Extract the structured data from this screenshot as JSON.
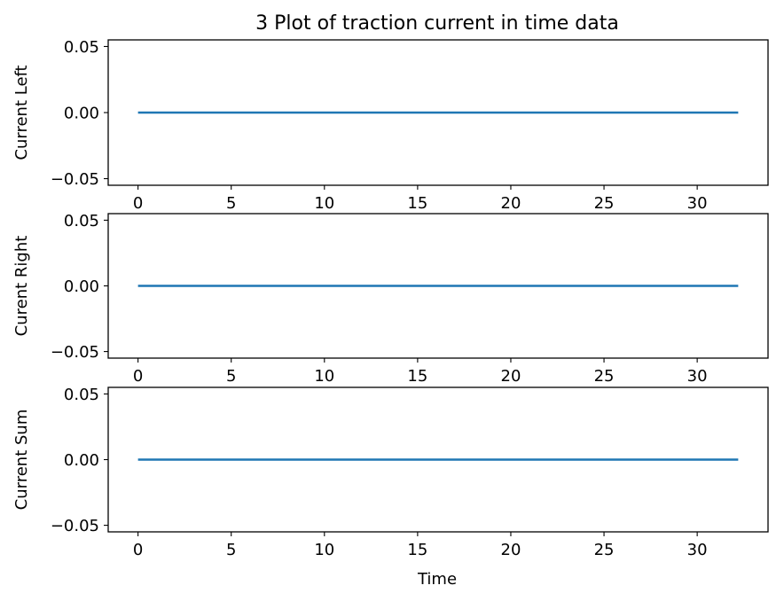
{
  "title": "3 Plot of traction current in time data",
  "chart_data": {
    "type": "line",
    "title": "3 Plot of traction current in time data",
    "xlabel": "Time",
    "line_color": "#1f77b4",
    "grid": false,
    "subplots": [
      {
        "ylabel": "Current Left",
        "xlim": [
          -1.6,
          33.8
        ],
        "ylim": [
          -0.055,
          0.055
        ],
        "xticks": [
          "0",
          "5",
          "10",
          "15",
          "20",
          "25",
          "30"
        ],
        "yticks": [
          "0.05",
          "0.00",
          "−0.05"
        ],
        "series": [
          {
            "x": [
              0,
              32.2
            ],
            "y": [
              0,
              0
            ]
          }
        ]
      },
      {
        "ylabel": "Curent Right",
        "xlim": [
          -1.6,
          33.8
        ],
        "ylim": [
          -0.055,
          0.055
        ],
        "xticks": [
          "0",
          "5",
          "10",
          "15",
          "20",
          "25",
          "30"
        ],
        "yticks": [
          "0.05",
          "0.00",
          "−0.05"
        ],
        "series": [
          {
            "x": [
              0,
              32.2
            ],
            "y": [
              0,
              0
            ]
          }
        ]
      },
      {
        "ylabel": "Current Sum",
        "xlim": [
          -1.6,
          33.8
        ],
        "ylim": [
          -0.055,
          0.055
        ],
        "xticks": [
          "0",
          "5",
          "10",
          "15",
          "20",
          "25",
          "30"
        ],
        "yticks": [
          "0.05",
          "0.00",
          "−0.05"
        ],
        "series": [
          {
            "x": [
              0,
              32.2
            ],
            "y": [
              0,
              0
            ]
          }
        ]
      }
    ]
  }
}
